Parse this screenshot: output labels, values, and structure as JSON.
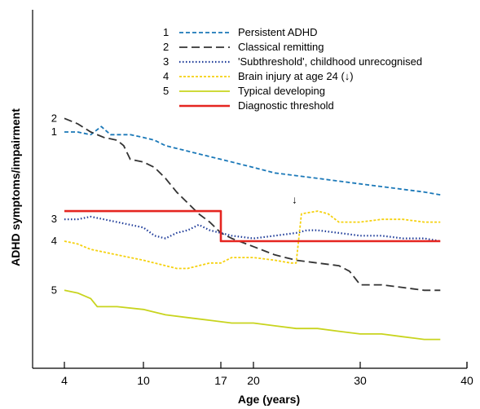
{
  "chart_data": {
    "type": "line",
    "title": "",
    "xlabel": "Age (years)",
    "ylabel": "ADHD symptoms/impairment",
    "xlim": [
      0,
      40
    ],
    "ylim": [
      0,
      100
    ],
    "x_ticks": [
      4,
      10,
      17,
      20,
      30,
      40
    ],
    "grid": false,
    "legend_position": "top-center",
    "series": [
      {
        "name": "Persistent ADHD",
        "number": "1",
        "color": "#1a78b8",
        "dash": "dashed",
        "points": [
          [
            4,
            80
          ],
          [
            5,
            80
          ],
          [
            6,
            79
          ],
          [
            6.8,
            82
          ],
          [
            7.5,
            79
          ],
          [
            9,
            79
          ],
          [
            10,
            78
          ],
          [
            11,
            77
          ],
          [
            12,
            75
          ],
          [
            14,
            73
          ],
          [
            16,
            71
          ],
          [
            17,
            70
          ],
          [
            20,
            67
          ],
          [
            22,
            65
          ],
          [
            24,
            64
          ],
          [
            26,
            63
          ],
          [
            28,
            62
          ],
          [
            30,
            61
          ],
          [
            32,
            60
          ],
          [
            34,
            59
          ],
          [
            36,
            58
          ],
          [
            37.5,
            57
          ]
        ]
      },
      {
        "name": "Classical remitting",
        "number": "2",
        "color": "#333333",
        "dash": "longdash",
        "points": [
          [
            4,
            85
          ],
          [
            5,
            83
          ],
          [
            6,
            80
          ],
          [
            7,
            78
          ],
          [
            8,
            77
          ],
          [
            8.5,
            75
          ],
          [
            9,
            70
          ],
          [
            10,
            69
          ],
          [
            11,
            67
          ],
          [
            12,
            63
          ],
          [
            13,
            58
          ],
          [
            15,
            50
          ],
          [
            16,
            47
          ],
          [
            17,
            43
          ],
          [
            18,
            41
          ],
          [
            20,
            38
          ],
          [
            22,
            35
          ],
          [
            24,
            33
          ],
          [
            26,
            32
          ],
          [
            28,
            31
          ],
          [
            29,
            29
          ],
          [
            30,
            24
          ],
          [
            32,
            24
          ],
          [
            34,
            23
          ],
          [
            36,
            22
          ],
          [
            37.5,
            22
          ]
        ]
      },
      {
        "name": "'Subthreshold', childhood unrecognised",
        "number": "3",
        "color": "#1f3c99",
        "dash": "dotted",
        "points": [
          [
            4,
            48
          ],
          [
            5,
            48
          ],
          [
            6,
            49
          ],
          [
            7,
            48
          ],
          [
            8,
            47
          ],
          [
            9,
            46
          ],
          [
            10,
            45
          ],
          [
            11,
            42
          ],
          [
            12,
            41
          ],
          [
            13,
            43
          ],
          [
            14,
            44
          ],
          [
            15,
            46
          ],
          [
            16,
            44
          ],
          [
            17,
            43
          ],
          [
            18,
            42
          ],
          [
            20,
            41
          ],
          [
            22,
            42
          ],
          [
            24,
            43
          ],
          [
            25,
            44
          ],
          [
            26,
            44
          ],
          [
            28,
            43
          ],
          [
            30,
            42
          ],
          [
            32,
            42
          ],
          [
            34,
            41
          ],
          [
            36,
            41
          ],
          [
            37.5,
            40
          ]
        ]
      },
      {
        "name": "Brain injury at age 24 (↓)",
        "number": "4",
        "color": "#f5d10e",
        "dash": "shortdash",
        "points": [
          [
            4,
            40
          ],
          [
            5,
            39
          ],
          [
            6,
            37
          ],
          [
            7,
            36
          ],
          [
            8,
            35
          ],
          [
            9,
            34
          ],
          [
            10,
            33
          ],
          [
            11,
            32
          ],
          [
            12,
            31
          ],
          [
            13,
            30
          ],
          [
            14,
            30
          ],
          [
            15,
            31
          ],
          [
            16,
            32
          ],
          [
            17,
            32
          ],
          [
            18,
            34
          ],
          [
            20,
            34
          ],
          [
            22,
            33
          ],
          [
            23.5,
            32
          ],
          [
            24,
            32
          ],
          [
            24.5,
            50
          ],
          [
            26,
            51
          ],
          [
            27,
            50
          ],
          [
            28,
            47
          ],
          [
            30,
            47
          ],
          [
            32,
            48
          ],
          [
            34,
            48
          ],
          [
            36,
            47
          ],
          [
            37.5,
            47
          ]
        ]
      },
      {
        "name": "Typical developing",
        "number": "5",
        "color": "#c8d41e",
        "dash": "solid",
        "points": [
          [
            4,
            22
          ],
          [
            5,
            21
          ],
          [
            6,
            19
          ],
          [
            6.5,
            16
          ],
          [
            8,
            16
          ],
          [
            10,
            15
          ],
          [
            12,
            13
          ],
          [
            14,
            12
          ],
          [
            16,
            11
          ],
          [
            18,
            10
          ],
          [
            20,
            10
          ],
          [
            22,
            9
          ],
          [
            24,
            8
          ],
          [
            26,
            8
          ],
          [
            28,
            7
          ],
          [
            30,
            6
          ],
          [
            32,
            6
          ],
          [
            34,
            5
          ],
          [
            36,
            4
          ],
          [
            37.5,
            4
          ]
        ]
      },
      {
        "name": "Diagnostic threshold",
        "number": "",
        "color": "#e52520",
        "dash": "solid-thick",
        "points": [
          [
            4,
            51
          ],
          [
            17,
            51
          ],
          [
            17,
            40
          ],
          [
            37.5,
            40
          ]
        ]
      }
    ],
    "line_labels": [
      {
        "text": "2",
        "series": "Classical remitting"
      },
      {
        "text": "1",
        "series": "Persistent ADHD"
      },
      {
        "text": "3",
        "series": "'Subthreshold', childhood unrecognised"
      },
      {
        "text": "4",
        "series": "Brain injury at age 24 (↓)"
      },
      {
        "text": "5",
        "series": "Typical developing"
      }
    ],
    "annotation": {
      "text": "↓",
      "x": 24,
      "y": 53
    }
  }
}
